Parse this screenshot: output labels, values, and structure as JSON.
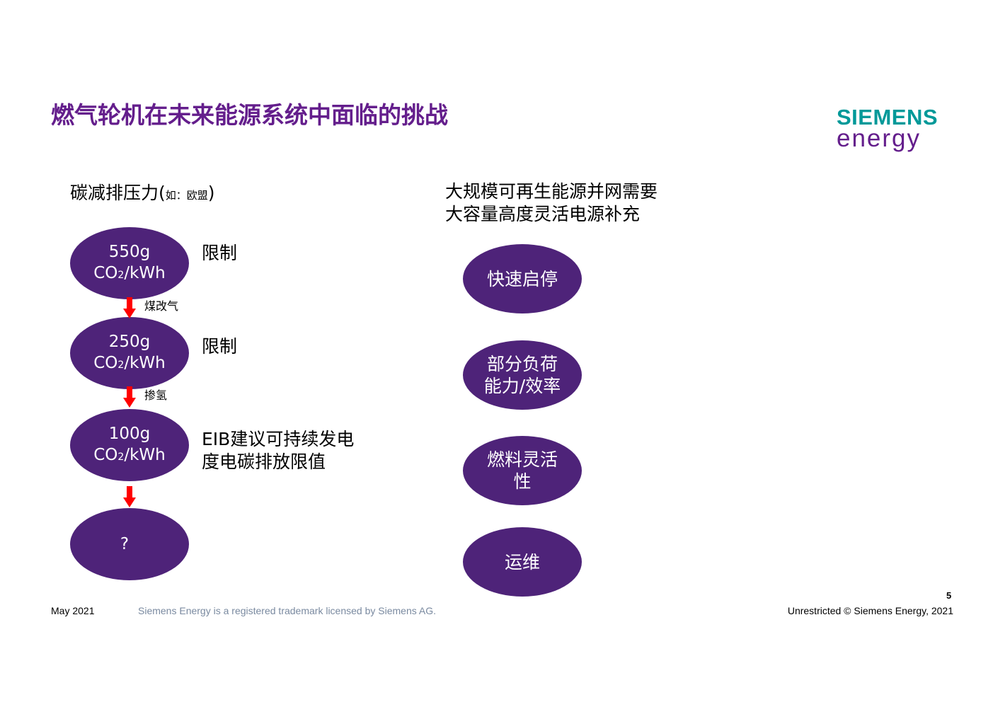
{
  "slide": {
    "title": "燃气轮机在未来能源系统中面临的挑战",
    "colors": {
      "title": "#641e8c",
      "ellipse": "#4e2379",
      "arrow": "#ff0000",
      "logo_top": "#009999",
      "logo_bottom": "#641e8c"
    }
  },
  "logo": {
    "line1": "SIEMENS",
    "line2": "energy"
  },
  "left": {
    "heading_main": "碳减排压力(",
    "heading_small": "如：欧盟",
    "heading_close": ")",
    "steps": [
      {
        "value": "550g",
        "unit_pre": "CO",
        "unit_sub": "2",
        "unit_post": "/kWh",
        "label": "限制"
      },
      {
        "value": "250g",
        "unit_pre": "CO",
        "unit_sub": "2",
        "unit_post": "/kWh",
        "label": "限制"
      },
      {
        "value": "100g",
        "unit_pre": "CO",
        "unit_sub": "2",
        "unit_post": "/kWh",
        "label_line1": "EIB建议可持续发电",
        "label_line2": "度电碳排放限值"
      },
      {
        "value": "?"
      }
    ],
    "arrows": [
      {
        "label": "煤改气"
      },
      {
        "label": "掺氢"
      },
      {
        "label": ""
      }
    ]
  },
  "right": {
    "heading_line1": "大规模可再生能源并网需要",
    "heading_line2": "大容量高度灵活电源补充",
    "items": [
      {
        "line1": "快速启停",
        "line2": ""
      },
      {
        "line1": "部分负荷",
        "line2": "能力/效率"
      },
      {
        "line1": "燃料灵活",
        "line2": "性"
      },
      {
        "line1": "运维",
        "line2": ""
      }
    ]
  },
  "footer": {
    "date": "May 2021",
    "trademark": "Siemens Energy is a registered trademark licensed by Siemens AG.",
    "page_number": "5",
    "copyright": "Unrestricted © Siemens Energy, 2021"
  }
}
